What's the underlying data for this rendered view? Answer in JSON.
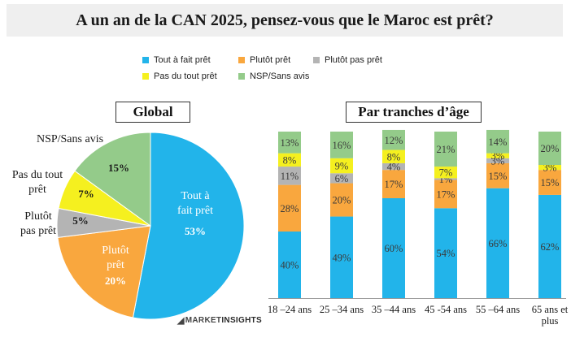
{
  "title": "A un an de la CAN 2025, pensez-vous que le Maroc est prêt?",
  "legend": {
    "items": [
      {
        "label": "Tout à fait prêt",
        "color": "#22b4ea"
      },
      {
        "label": "Plutôt prêt",
        "color": "#f9a73e"
      },
      {
        "label": "Plutôt pas prêt",
        "color": "#b4b4b4"
      },
      {
        "label": "Pas du tout prêt",
        "color": "#f5f01f"
      },
      {
        "label": "NSP/Sans avis",
        "color": "#94cb8a"
      }
    ]
  },
  "brand": {
    "part1": "MARKET",
    "part2": "INSIGHTS"
  },
  "chart_data": [
    {
      "type": "pie",
      "title": "Global",
      "slices": [
        {
          "name": "Tout à fait prêt",
          "value": 53,
          "label_lines": [
            "Tout à",
            "fait prêt"
          ],
          "value_label": "53%",
          "color": "#22b4ea"
        },
        {
          "name": "Plutôt prêt",
          "value": 20,
          "label_lines": [
            "Plutôt",
            "prêt"
          ],
          "value_label": "20%",
          "color": "#f9a73e"
        },
        {
          "name": "Plutôt pas prêt",
          "value": 5,
          "label_lines": [
            "Plutôt",
            "pas prêt"
          ],
          "value_label": "5%",
          "color": "#b4b4b4"
        },
        {
          "name": "Pas du tout prêt",
          "value": 7,
          "label_lines": [
            "Pas du tout",
            "prêt"
          ],
          "value_label": "7%",
          "color": "#f5f01f"
        },
        {
          "name": "NSP/Sans avis",
          "value": 15,
          "label_lines": [
            "NSP/Sans avis"
          ],
          "value_label": "15%",
          "color": "#94cb8a"
        }
      ]
    },
    {
      "type": "bar",
      "stacked": true,
      "orientation": "vertical",
      "title": "Par tranches d’âge",
      "categories": [
        "18 –24 ans",
        "25 –34 ans",
        "35 –44 ans",
        "45 -54 ans",
        "55 –64 ans",
        "65 ans et plus"
      ],
      "category_lines": [
        [
          "18 –24 ans"
        ],
        [
          "25 –34 ans"
        ],
        [
          "35 –44 ans"
        ],
        [
          "45 -54 ans"
        ],
        [
          "55 –64 ans"
        ],
        [
          "65 ans et",
          "plus"
        ]
      ],
      "series": [
        {
          "name": "Tout à fait prêt",
          "color": "#22b4ea",
          "values": [
            40,
            49,
            60,
            54,
            66,
            62
          ]
        },
        {
          "name": "Plutôt prêt",
          "color": "#f9a73e",
          "values": [
            28,
            20,
            17,
            17,
            15,
            15
          ]
        },
        {
          "name": "Plutôt pas prêt",
          "color": "#b4b4b4",
          "values": [
            11,
            6,
            4,
            1,
            3,
            0
          ]
        },
        {
          "name": "Pas du tout prêt",
          "color": "#f5f01f",
          "values": [
            8,
            9,
            8,
            7,
            3,
            3
          ]
        },
        {
          "name": "NSP/Sans avis",
          "color": "#94cb8a",
          "values": [
            13,
            16,
            12,
            21,
            14,
            20
          ]
        }
      ],
      "ylim": [
        0,
        100
      ],
      "data_labels": true,
      "legend_position": "top"
    }
  ]
}
